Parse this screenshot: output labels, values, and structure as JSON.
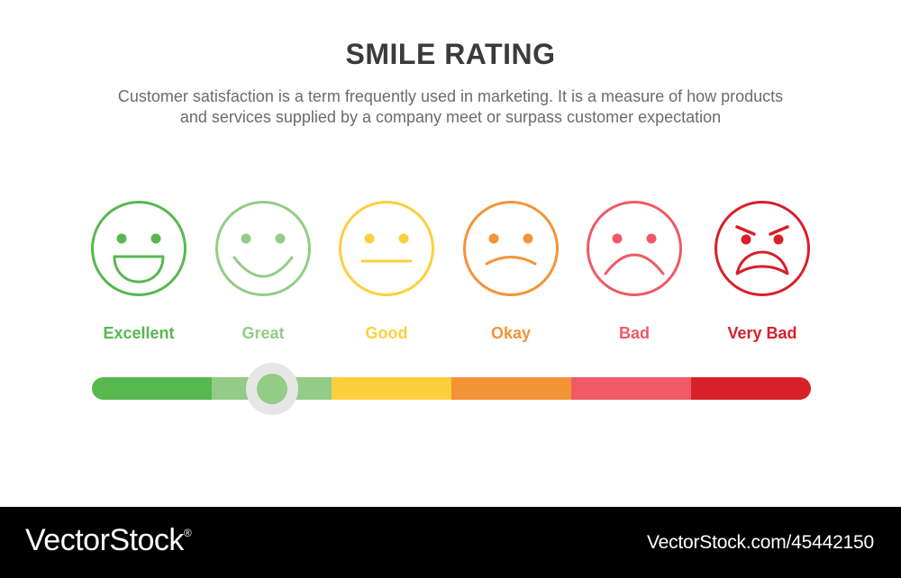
{
  "header": {
    "title": "SMILE RATING",
    "subtitle_line1": "Customer satisfaction is a term frequently used in marketing. It is a measure of how products",
    "subtitle_line2": "and services supplied by a company meet or surpass customer expectation"
  },
  "ratings": [
    {
      "label": "Excellent",
      "color": "#57b84f",
      "face": "big-smile-face-icon"
    },
    {
      "label": "Great",
      "color": "#93cc86",
      "face": "smile-face-icon"
    },
    {
      "label": "Good",
      "color": "#fcd03c",
      "face": "neutral-face-icon"
    },
    {
      "label": "Okay",
      "color": "#f39437",
      "face": "slight-frown-face-icon"
    },
    {
      "label": "Bad",
      "color": "#ee5a65",
      "face": "frown-face-icon"
    },
    {
      "label": "Very Bad",
      "color": "#d8202a",
      "face": "angry-face-icon"
    }
  ],
  "slider": {
    "selected_index": 1,
    "selected_label": "Great",
    "segment_colors": [
      "#57b84f",
      "#93cc86",
      "#fcd03c",
      "#f39437",
      "#ee5a65",
      "#d8202a"
    ]
  },
  "footer": {
    "brand": "VectorStock",
    "registered_mark": "®",
    "stock_id": "VectorStock.com/45442150"
  }
}
